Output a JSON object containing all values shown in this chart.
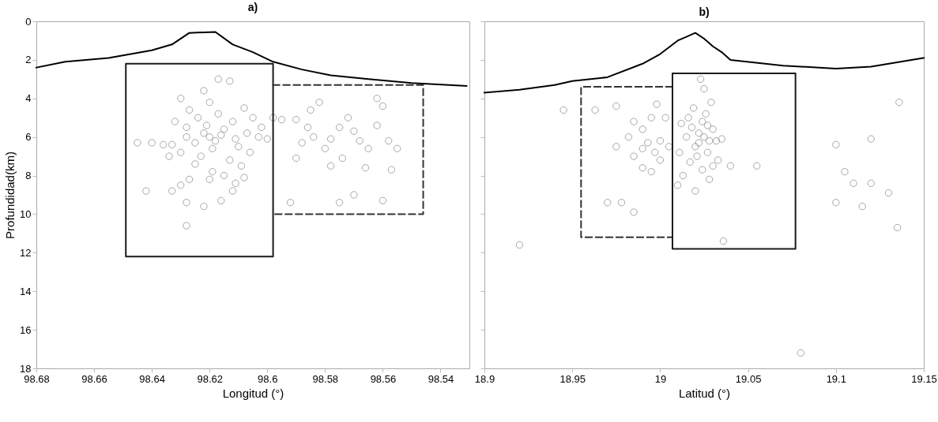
{
  "chart_data": [
    {
      "type": "scatter",
      "title": "a)",
      "xlabel": "Longitud (°)",
      "ylabel": "Profundidad(km)",
      "xlim": [
        98.68,
        98.53
      ],
      "xticks": [
        98.68,
        98.66,
        98.64,
        98.62,
        {
          "value": 98.6,
          "label": "98.6"
        },
        98.58,
        98.56,
        98.54
      ],
      "ylim": [
        18,
        0
      ],
      "yticks": [
        0,
        2,
        4,
        6,
        8,
        10,
        12,
        14,
        16,
        18
      ],
      "grid": false,
      "series": [
        {
          "marker": "circle",
          "color": "#7f7f7f",
          "x": [
            98.62,
            98.622,
            98.618,
            98.625,
            98.615,
            98.628,
            98.612,
            98.63,
            98.61,
            98.623,
            98.617,
            98.627,
            98.62,
            98.633,
            98.607,
            98.613,
            98.625,
            98.632,
            98.605,
            98.619,
            98.621,
            98.624,
            98.616,
            98.628,
            98.611,
            98.634,
            98.636,
            98.64,
            98.645,
            98.617,
            98.613,
            98.622,
            98.63,
            98.608,
            98.602,
            98.603,
            98.609,
            98.615,
            98.62,
            98.627,
            98.63,
            98.608,
            98.612,
            98.628,
            98.622,
            98.616,
            98.628,
            98.642,
            98.633,
            98.619,
            98.606,
            98.611,
            98.6,
            98.598,
            98.595,
            98.59,
            98.585,
            98.582,
            98.586,
            98.584,
            98.588,
            98.578,
            98.575,
            98.572,
            98.57,
            98.568,
            98.565,
            98.562,
            98.558,
            98.555,
            98.562,
            98.56,
            98.578,
            98.574,
            98.566,
            98.56,
            98.575,
            98.57,
            98.59,
            98.592,
            98.557,
            98.58
          ],
          "values": [
            6.0,
            5.8,
            6.2,
            6.3,
            5.6,
            5.5,
            5.2,
            6.8,
            6.5,
            7.0,
            4.8,
            4.6,
            4.2,
            6.4,
            5.8,
            7.2,
            7.4,
            5.2,
            5.0,
            6.6,
            5.4,
            5.0,
            5.9,
            6.0,
            6.1,
            7.0,
            6.4,
            6.3,
            6.3,
            3.0,
            3.1,
            3.6,
            4.0,
            4.5,
            5.5,
            6.0,
            7.5,
            8.0,
            8.2,
            8.2,
            8.5,
            8.1,
            8.8,
            9.4,
            9.6,
            9.3,
            10.6,
            8.8,
            8.8,
            7.8,
            6.8,
            8.4,
            6.1,
            5.0,
            5.1,
            5.1,
            4.6,
            4.2,
            5.5,
            6.0,
            6.3,
            6.1,
            5.5,
            5.0,
            5.7,
            6.2,
            6.6,
            5.4,
            6.2,
            6.6,
            4.0,
            4.4,
            7.5,
            7.1,
            7.6,
            9.3,
            9.4,
            9.0,
            7.1,
            9.4,
            7.7,
            6.6
          ]
        },
        {
          "type": "line",
          "color": "#000000",
          "x": [
            98.68,
            98.67,
            98.655,
            98.64,
            98.633,
            98.627,
            98.618,
            98.612,
            98.605,
            98.598,
            98.588,
            98.578,
            98.565,
            98.55,
            98.531
          ],
          "values": [
            2.4,
            2.1,
            1.9,
            1.5,
            1.2,
            0.6,
            0.55,
            1.2,
            1.6,
            2.1,
            2.5,
            2.8,
            3.0,
            3.2,
            3.35
          ]
        },
        {
          "type": "line",
          "color": "#1a1a1a",
          "line_style": "solid",
          "x": [
            98.62,
            98.598,
            98.598,
            98.649,
            98.649,
            98.6203
          ],
          "values": [
            2.2,
            2.2,
            12.2,
            12.2,
            2.2,
            2.2
          ]
        },
        {
          "type": "line",
          "color": "#333333",
          "line_style": "dashed",
          "x": [
            98.598,
            98.546,
            98.546,
            98.598
          ],
          "values": [
            3.3,
            3.3,
            10.0,
            10.0
          ]
        }
      ]
    },
    {
      "type": "scatter",
      "title": "b)",
      "xlabel": "Latitud (°)",
      "xlim": [
        18.9,
        19.15
      ],
      "xticks": [
        18.9,
        18.95,
        19,
        19.05,
        19.1,
        19.15
      ],
      "ylim": [
        18,
        0
      ],
      "yticks": [
        0,
        2,
        4,
        6,
        8,
        10,
        12,
        14,
        16,
        18
      ],
      "tick_labels": "x",
      "grid": false,
      "series": [
        {
          "marker": "circle",
          "color": "#7f7f7f",
          "x": [
            19.025,
            19.022,
            19.028,
            19.02,
            19.03,
            19.024,
            19.018,
            19.027,
            19.032,
            19.021,
            19.026,
            19.015,
            19.035,
            19.019,
            19.023,
            19.025,
            19.012,
            19.017,
            19.03,
            19.028,
            19.02,
            19.01,
            19.04,
            19.033,
            19.022,
            19.027,
            19.024,
            19.016,
            19.011,
            19.029,
            19.036,
            19.013,
            18.963,
            18.975,
            18.985,
            18.99,
            18.995,
            19.0,
            18.993,
            18.99,
            18.997,
            19.0,
            18.982,
            18.985,
            18.99,
            18.995,
            18.978,
            18.97,
            18.985,
            18.975,
            19.003,
            19.005,
            18.998,
            18.92,
            18.945,
            19.1,
            19.105,
            19.11,
            19.115,
            19.12,
            19.1,
            19.12,
            19.13,
            19.135,
            19.136,
            19.08,
            19.055
          ],
          "values": [
            6.0,
            5.8,
            6.2,
            6.5,
            5.6,
            5.2,
            5.5,
            6.8,
            6.2,
            7.0,
            4.8,
            6.0,
            6.1,
            4.5,
            3.0,
            3.5,
            5.3,
            7.3,
            7.5,
            8.2,
            8.8,
            8.5,
            7.5,
            7.2,
            6.3,
            5.4,
            7.7,
            5.0,
            6.8,
            4.2,
            11.4,
            8.0,
            4.6,
            4.4,
            5.2,
            5.6,
            5.0,
            6.2,
            6.3,
            6.6,
            6.8,
            7.2,
            6.0,
            7.0,
            7.6,
            7.8,
            9.4,
            9.4,
            9.9,
            6.5,
            5.0,
            6.5,
            4.3,
            11.6,
            4.6,
            6.4,
            7.8,
            8.4,
            9.6,
            8.4,
            9.4,
            6.1,
            8.9,
            10.7,
            4.2,
            17.2,
            7.5
          ]
        },
        {
          "type": "line",
          "color": "#000000",
          "x": [
            18.9,
            18.92,
            18.94,
            18.95,
            18.97,
            18.99,
            19.0,
            19.01,
            19.015,
            19.02,
            19.025,
            19.03,
            19.035,
            19.04,
            19.07,
            19.1,
            19.12,
            19.15
          ],
          "values": [
            3.7,
            3.55,
            3.3,
            3.1,
            2.9,
            2.2,
            1.7,
            1.0,
            0.8,
            0.6,
            0.9,
            1.3,
            1.6,
            2.0,
            2.3,
            2.45,
            2.35,
            1.9
          ]
        },
        {
          "type": "line",
          "color": "#333333",
          "line_style": "dashed",
          "x": [
            19.007,
            18.955,
            18.955,
            19.007
          ],
          "values": [
            3.4,
            3.4,
            11.2,
            11.2
          ]
        },
        {
          "type": "line",
          "color": "#1a1a1a",
          "line_style": "solid",
          "x": [
            19.04,
            19.077,
            19.077,
            19.007,
            19.007,
            19.0395
          ],
          "values": [
            2.7,
            2.7,
            11.8,
            11.8,
            2.7,
            2.7
          ]
        }
      ]
    }
  ]
}
